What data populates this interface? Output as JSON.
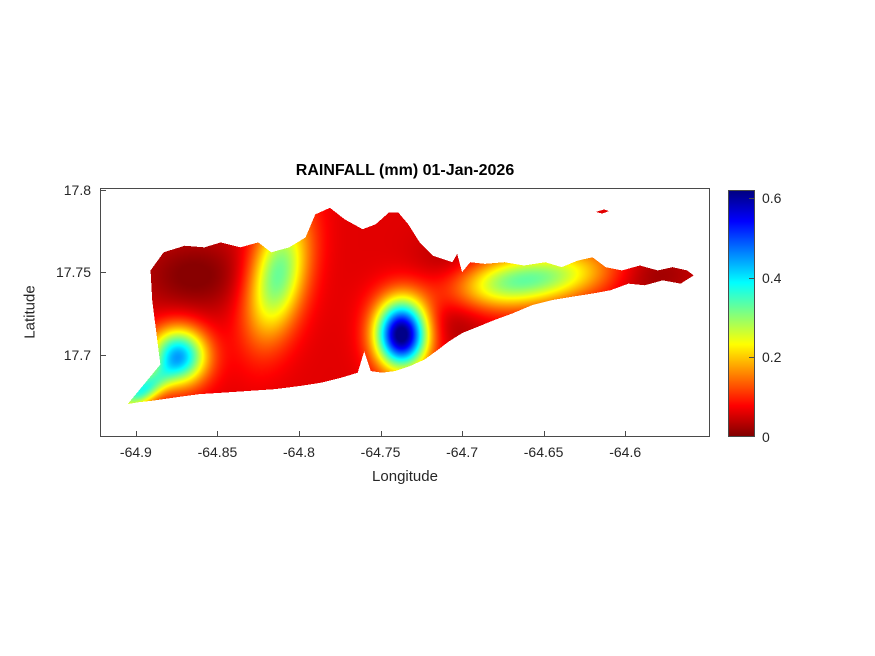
{
  "figure": {
    "background_color": "#ffffff",
    "title_color": "#000000",
    "axis_text_color": "#262626",
    "axis_line_color": "#4a4a4a"
  },
  "chart_data": {
    "type": "heatmap",
    "title": "RAINFALL (mm) 01-Jan-2026",
    "xlabel": "Longitude",
    "ylabel": "Latitude",
    "units": "mm",
    "xlim": [
      -64.922,
      -64.548
    ],
    "ylim": [
      17.65,
      17.801
    ],
    "xticks": [
      -64.9,
      -64.85,
      -64.8,
      -64.75,
      -64.7,
      -64.65,
      -64.6
    ],
    "xtick_labels": [
      "-64.9",
      "-64.85",
      "-64.8",
      "-64.75",
      "-64.7",
      "-64.65",
      "-64.6"
    ],
    "yticks": [
      17.7,
      17.75,
      17.8
    ],
    "ytick_labels": [
      "17.7",
      "17.75",
      "17.8"
    ],
    "grid": false,
    "colormap": "jet_reversed (0 = dark red, max = dark blue)",
    "colorbar": {
      "position": "right",
      "vmin": 0,
      "vmax": 0.62,
      "ticks": [
        0,
        0.2,
        0.4,
        0.6
      ],
      "tick_labels": [
        "0",
        "0.2",
        "0.4",
        "0.6"
      ]
    },
    "island_outline": [
      [
        -64.905,
        17.67
      ],
      [
        -64.899,
        17.671
      ],
      [
        -64.89,
        17.672
      ],
      [
        -64.876,
        17.674
      ],
      [
        -64.861,
        17.676
      ],
      [
        -64.845,
        17.677
      ],
      [
        -64.83,
        17.678
      ],
      [
        -64.815,
        17.679
      ],
      [
        -64.799,
        17.681
      ],
      [
        -64.786,
        17.683
      ],
      [
        -64.774,
        17.686
      ],
      [
        -64.764,
        17.689
      ],
      [
        -64.76,
        17.702
      ],
      [
        -64.756,
        17.69
      ],
      [
        -64.749,
        17.689
      ],
      [
        -64.741,
        17.69
      ],
      [
        -64.732,
        17.693
      ],
      [
        -64.723,
        17.697
      ],
      [
        -64.716,
        17.702
      ],
      [
        -64.708,
        17.708
      ],
      [
        -64.7,
        17.713
      ],
      [
        -64.69,
        17.717
      ],
      [
        -64.68,
        17.721
      ],
      [
        -64.669,
        17.725
      ],
      [
        -64.657,
        17.73
      ],
      [
        -64.645,
        17.733
      ],
      [
        -64.633,
        17.735
      ],
      [
        -64.62,
        17.737
      ],
      [
        -64.609,
        17.739
      ],
      [
        -64.598,
        17.743
      ],
      [
        -64.588,
        17.742
      ],
      [
        -64.577,
        17.745
      ],
      [
        -64.566,
        17.743
      ],
      [
        -64.558,
        17.748
      ],
      [
        -64.562,
        17.751
      ],
      [
        -64.571,
        17.753
      ],
      [
        -64.58,
        17.751
      ],
      [
        -64.591,
        17.754
      ],
      [
        -64.602,
        17.751
      ],
      [
        -64.612,
        17.753
      ],
      [
        -64.62,
        17.759
      ],
      [
        -64.629,
        17.757
      ],
      [
        -64.639,
        17.753
      ],
      [
        -64.649,
        17.756
      ],
      [
        -64.662,
        17.754
      ],
      [
        -64.674,
        17.756
      ],
      [
        -64.686,
        17.755
      ],
      [
        -64.695,
        17.756
      ],
      [
        -64.7,
        17.75
      ],
      [
        -64.703,
        17.761
      ],
      [
        -64.706,
        17.756
      ],
      [
        -64.709,
        17.757
      ],
      [
        -64.718,
        17.76
      ],
      [
        -64.726,
        17.768
      ],
      [
        -64.733,
        17.779
      ],
      [
        -64.739,
        17.786
      ],
      [
        -64.745,
        17.786
      ],
      [
        -64.753,
        17.779
      ],
      [
        -64.761,
        17.776
      ],
      [
        -64.772,
        17.782
      ],
      [
        -64.781,
        17.789
      ],
      [
        -64.79,
        17.785
      ],
      [
        -64.796,
        17.771
      ],
      [
        -64.806,
        17.765
      ],
      [
        -64.817,
        17.762
      ],
      [
        -64.825,
        17.768
      ],
      [
        -64.836,
        17.765
      ],
      [
        -64.848,
        17.768
      ],
      [
        -64.858,
        17.765
      ],
      [
        -64.87,
        17.766
      ],
      [
        -64.883,
        17.762
      ],
      [
        -64.891,
        17.751
      ],
      [
        -64.89,
        17.733
      ],
      [
        -64.885,
        17.694
      ]
    ],
    "islets": [
      [
        [
          -64.618,
          17.7865
        ],
        [
          -64.613,
          17.788
        ],
        [
          -64.61,
          17.787
        ],
        [
          -64.614,
          17.7855
        ]
      ]
    ],
    "field": {
      "description": "rainfall (mm) approximated as gaussian features over a base value; amp in mm, sigmas in degrees, rot in degrees",
      "base_value": 0.06,
      "clamp": [
        0.005,
        0.615
      ],
      "blobs": [
        {
          "name": "southwest-cyan-peak",
          "lon": -64.874,
          "lat": 17.699,
          "amp": 0.38,
          "sx": 0.012,
          "sy": 0.012,
          "rot": 0
        },
        {
          "name": "southwest-tip-green",
          "lon": -64.897,
          "lat": 17.678,
          "amp": 0.3,
          "sx": 0.012,
          "sy": 0.006,
          "rot": 35
        },
        {
          "name": "westcentral-green-ridge",
          "lon": -64.813,
          "lat": 17.748,
          "amp": 0.27,
          "sx": 0.012,
          "sy": 0.027,
          "rot": -12
        },
        {
          "name": "central-blue-maximum",
          "lon": -64.737,
          "lat": 17.712,
          "amp": 0.58,
          "sx": 0.011,
          "sy": 0.014,
          "rot": 0
        },
        {
          "name": "east-green-area",
          "lon": -64.662,
          "lat": 17.745,
          "amp": 0.27,
          "sx": 0.036,
          "sy": 0.011,
          "rot": 8
        },
        {
          "name": "west-darkred-low",
          "lon": -64.864,
          "lat": 17.748,
          "amp": -0.06,
          "sx": 0.024,
          "sy": 0.016,
          "rot": 0
        },
        {
          "name": "centraleast-darkred-low",
          "lon": -64.706,
          "lat": 17.737,
          "amp": -0.07,
          "sx": 0.016,
          "sy": 0.02,
          "rot": 0
        },
        {
          "name": "fareast-darkred-low",
          "lon": -64.585,
          "lat": 17.75,
          "amp": -0.055,
          "sx": 0.02,
          "sy": 0.012,
          "rot": 0
        }
      ]
    }
  }
}
